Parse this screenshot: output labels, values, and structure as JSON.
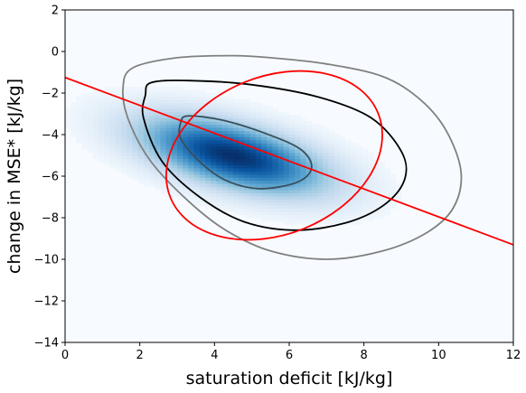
{
  "chart_data": {
    "type": "heatmap",
    "title": "",
    "xlabel": "saturation deficit [kJ/kg]",
    "ylabel": "change in MSE* [kJ/kg]",
    "xlim": [
      0,
      12
    ],
    "ylim": [
      -14,
      2
    ],
    "xticks": [
      0,
      2,
      4,
      6,
      8,
      10,
      12
    ],
    "yticks": [
      -14,
      -12,
      -10,
      -8,
      -6,
      -4,
      -2,
      0,
      2
    ],
    "grid": false,
    "legend": "none",
    "colormap": "Blues",
    "density": {
      "peak": [
        4.5,
        -5.0
      ],
      "spread": [
        1.6,
        1.2
      ],
      "correlation": -0.55
    },
    "contours": [
      {
        "name": "outer",
        "color": "#808080",
        "points": [
          [
            1.8,
            -0.8
          ],
          [
            3,
            -0.3
          ],
          [
            4.5,
            -0.2
          ],
          [
            5.5,
            -0.3
          ],
          [
            7,
            -0.6
          ],
          [
            8.5,
            -1.2
          ],
          [
            9.5,
            -2.3
          ],
          [
            10.2,
            -3.8
          ],
          [
            10.6,
            -5.8
          ],
          [
            10.4,
            -7.5
          ],
          [
            9.7,
            -8.7
          ],
          [
            8.5,
            -9.6
          ],
          [
            7,
            -10
          ],
          [
            5.5,
            -9.6
          ],
          [
            4.3,
            -8.6
          ],
          [
            3.3,
            -7.2
          ],
          [
            2.3,
            -5.3
          ],
          [
            1.7,
            -3.3
          ],
          [
            1.55,
            -1.8
          ],
          [
            1.8,
            -0.8
          ]
        ]
      },
      {
        "name": "middle",
        "color": "#000000",
        "points": [
          [
            2.3,
            -1.5
          ],
          [
            3.3,
            -1.4
          ],
          [
            5,
            -1.6
          ],
          [
            6.8,
            -2.2
          ],
          [
            8.2,
            -3.2
          ],
          [
            9,
            -4.8
          ],
          [
            9.1,
            -6.1
          ],
          [
            8.6,
            -7.3
          ],
          [
            7.6,
            -8.2
          ],
          [
            6.2,
            -8.6
          ],
          [
            4.8,
            -8.2
          ],
          [
            3.6,
            -7
          ],
          [
            2.6,
            -5.3
          ],
          [
            2.1,
            -3.2
          ],
          [
            2.15,
            -2.1
          ],
          [
            2.3,
            -1.5
          ]
        ]
      },
      {
        "name": "inner",
        "color": "#3a4f5c",
        "points": [
          [
            3.3,
            -3.1
          ],
          [
            4.2,
            -3.3
          ],
          [
            5.3,
            -3.9
          ],
          [
            6.3,
            -4.7
          ],
          [
            6.6,
            -5.6
          ],
          [
            6.2,
            -6.3
          ],
          [
            5.2,
            -6.6
          ],
          [
            4.3,
            -6.2
          ],
          [
            3.6,
            -5.3
          ],
          [
            3.1,
            -4.2
          ],
          [
            3.1,
            -3.4
          ],
          [
            3.3,
            -3.1
          ]
        ]
      }
    ],
    "ellipse": {
      "color": "#ff0000",
      "center": [
        5.6,
        -5.0
      ],
      "rx": 3.0,
      "ry": 3.8,
      "rotation_deg": 22
    },
    "regression_line": {
      "color": "#ff0000",
      "points": [
        [
          0,
          -1.25
        ],
        [
          12,
          -9.3
        ]
      ]
    }
  }
}
